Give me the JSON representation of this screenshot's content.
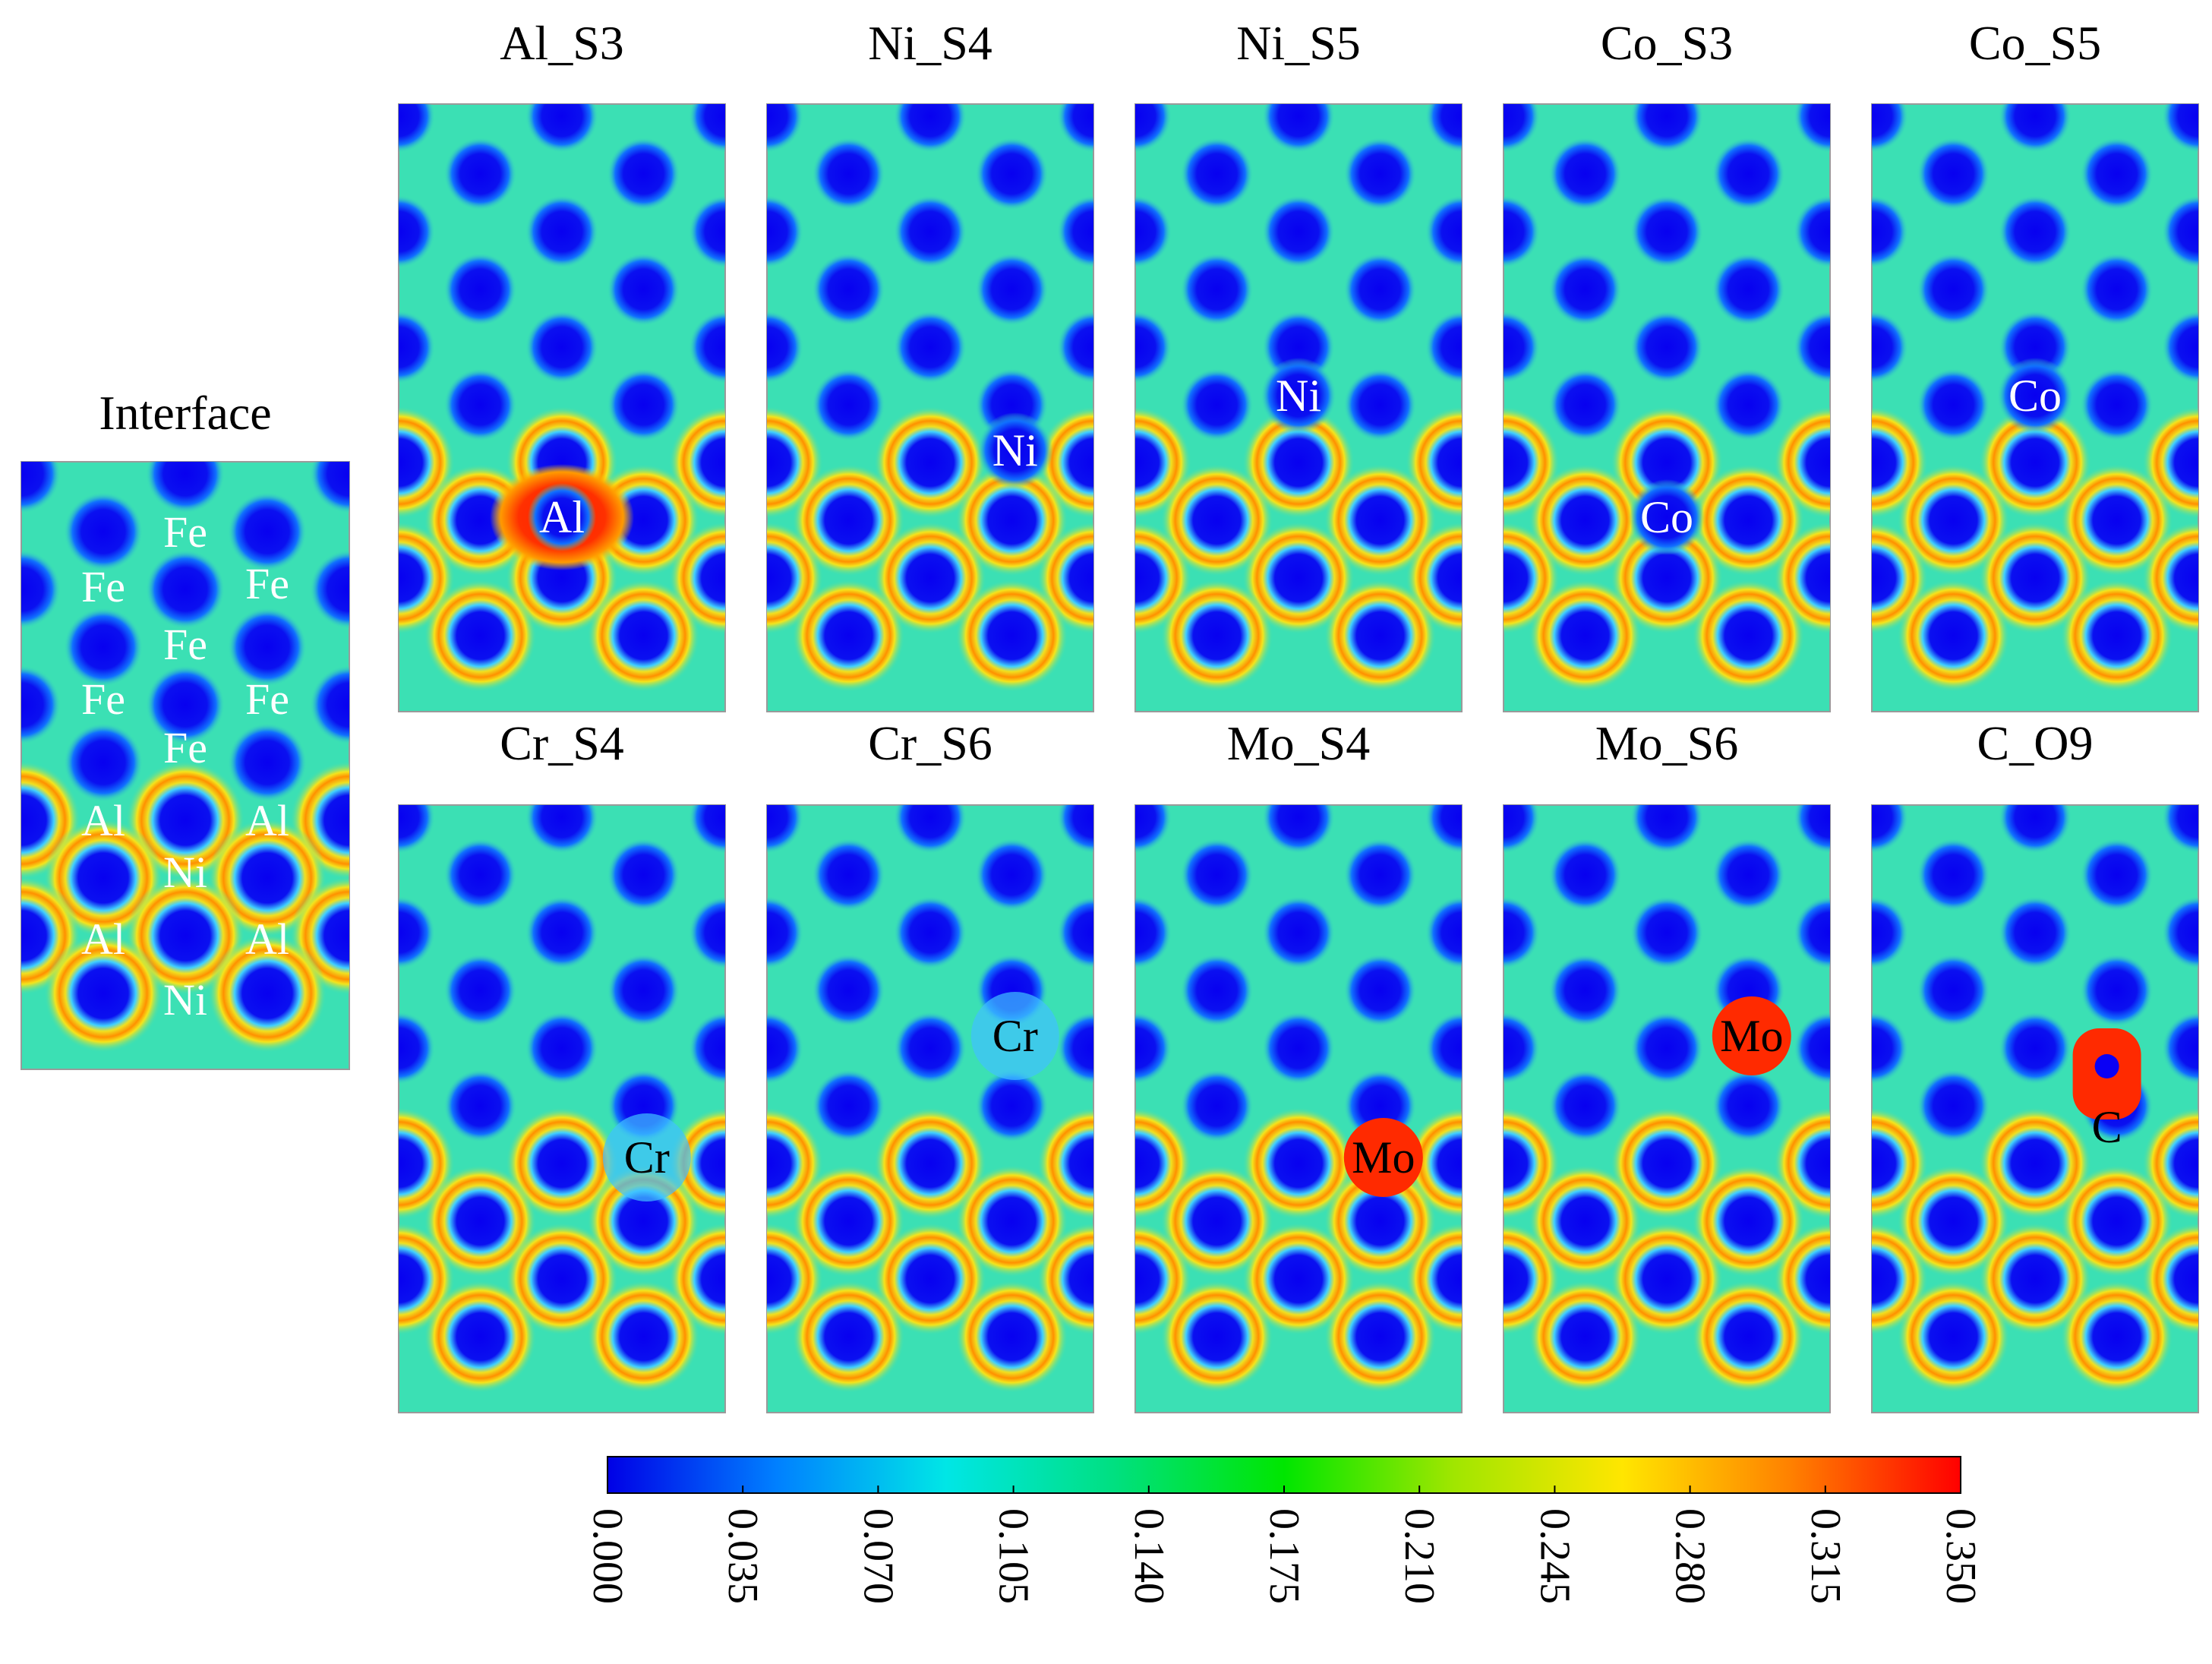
{
  "interface_panel": {
    "title": "Interface",
    "labels": [
      "Fe",
      "Fe",
      "Fe",
      "Fe",
      "Fe",
      "Fe",
      "Fe",
      "Al",
      "Al",
      "Ni",
      "Al",
      "Al",
      "Ni"
    ]
  },
  "panels": [
    {
      "title": "Al_S3",
      "label": "Al"
    },
    {
      "title": "Ni_S4",
      "label": "Ni"
    },
    {
      "title": "Ni_S5",
      "label": "Ni"
    },
    {
      "title": "Co_S3",
      "label": "Co"
    },
    {
      "title": "Co_S5",
      "label": "Co"
    },
    {
      "title": "Cr_S4",
      "label": "Cr"
    },
    {
      "title": "Cr_S6",
      "label": "Cr"
    },
    {
      "title": "Mo_S4",
      "label": "Mo"
    },
    {
      "title": "Mo_S6",
      "label": "Mo"
    },
    {
      "title": "C_O9",
      "label": "C"
    }
  ],
  "colorbar": {
    "min": 0.0,
    "max": 0.35,
    "ticks": [
      "0.000",
      "0.035",
      "0.070",
      "0.105",
      "0.140",
      "0.175",
      "0.210",
      "0.245",
      "0.280",
      "0.315",
      "0.350"
    ],
    "gradient": [
      "#0000e6",
      "#0080ff",
      "#00e6e6",
      "#00e080",
      "#00e600",
      "#a0e600",
      "#ffe600",
      "#ff8000",
      "#ff0000"
    ]
  },
  "colors": {
    "background": "#3be0b4",
    "atom": "#0a00f5",
    "ring": "#f2d312",
    "hot": "#ff2a00",
    "label_light": "#ffffff",
    "label_dark": "#000000"
  }
}
